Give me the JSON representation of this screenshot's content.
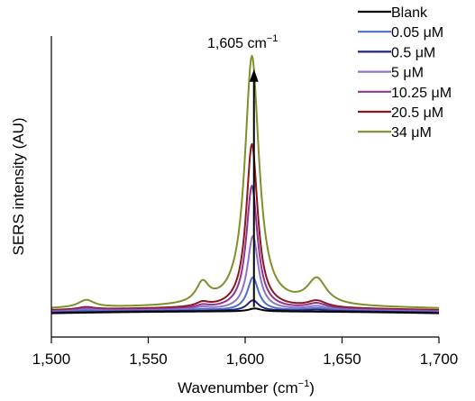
{
  "chart_data": {
    "type": "line",
    "title": "",
    "xlabel": "Wavenumber (cm",
    "xlabel_sup": "−1",
    "xlabel_end": ")",
    "ylabel": "SERS intensity (AU)",
    "xlim": [
      1500,
      1700
    ],
    "ylim": [
      0,
      1
    ],
    "x_ticks": [
      1500,
      1550,
      1600,
      1650,
      1700
    ],
    "x_tick_labels": [
      "1,500",
      "1,550",
      "1,600",
      "1,650",
      "1,700"
    ],
    "y_ticks_labeled": false,
    "grid": false,
    "legend_position": "top-right",
    "annotation": {
      "text": "1,605 cm",
      "sup": "−1",
      "x": 1605,
      "arrow_from": 0.1,
      "arrow_to": 0.89
    },
    "series": [
      {
        "name": "Blank",
        "color": "#000000",
        "peak": 0.01,
        "peak_x": 1605,
        "peak_width": 3.8,
        "baseline": 0.085,
        "shoulder_low": 0.0,
        "shoulder_high": 0.0,
        "hump": 0.0
      },
      {
        "name": "0.05 μM",
        "color": "#4a6fc6",
        "peak": 0.11,
        "peak_x": 1604,
        "peak_width": 3.4,
        "baseline": 0.088,
        "shoulder_low": 0.004,
        "shoulder_high": 0.008,
        "hump": 0.004
      },
      {
        "name": "0.5 μM",
        "color": "#22237a",
        "peak": 0.035,
        "peak_x": 1604,
        "peak_width": 3.6,
        "baseline": 0.087,
        "shoulder_low": 0.0,
        "shoulder_high": 0.004,
        "hump": 0.0
      },
      {
        "name": "5 μM",
        "color": "#8d73c9",
        "peak": 0.245,
        "peak_x": 1604,
        "peak_width": 3.4,
        "baseline": 0.09,
        "shoulder_low": 0.008,
        "shoulder_high": 0.012,
        "hump": 0.006
      },
      {
        "name": "10.25 μM",
        "color": "#8e3492",
        "peak": 0.41,
        "peak_x": 1603.5,
        "peak_width": 3.5,
        "baseline": 0.092,
        "shoulder_low": 0.01,
        "shoulder_high": 0.018,
        "hump": 0.008
      },
      {
        "name": "20.5 μM",
        "color": "#8c1620",
        "peak": 0.545,
        "peak_x": 1603.5,
        "peak_width": 3.6,
        "baseline": 0.095,
        "shoulder_low": 0.014,
        "shoulder_high": 0.022,
        "hump": 0.008
      },
      {
        "name": "34 μM",
        "color": "#7f8f2a",
        "peak": 0.83,
        "peak_x": 1603.5,
        "peak_width": 4.4,
        "baseline": 0.1,
        "shoulder_low": 0.065,
        "shoulder_high": 0.085,
        "hump": 0.025
      }
    ]
  }
}
